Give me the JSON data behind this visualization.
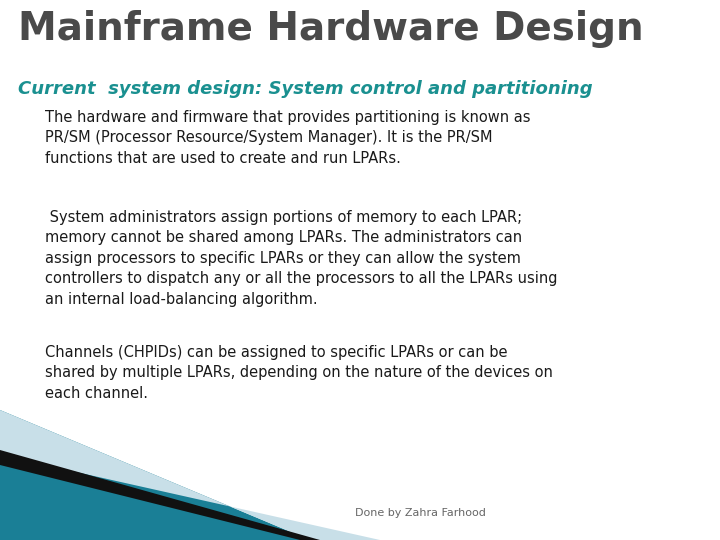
{
  "title": "Mainframe Hardware Design",
  "subtitle": "Current  system design: System control and partitioning",
  "paragraph1": "The hardware and firmware that provides partitioning is known as\nPR/SM (Processor Resource/System Manager). It is the PR/SM\nfunctions that are used to create and run LPARs.",
  "paragraph2": " System administrators assign portions of memory to each LPAR;\nmemory cannot be shared among LPARs. The administrators can\nassign processors to specific LPARs or they can allow the system\ncontrollers to dispatch any or all the processors to all the LPARs using\nan internal load-balancing algorithm.",
  "paragraph3": "Channels (CHPIDs) can be assigned to specific LPARs or can be\nshared by multiple LPARs, depending on the nature of the devices on\neach channel.",
  "footer": "Done by Zahra Farhood",
  "bg_color": "#ffffff",
  "title_color": "#4a4a4a",
  "subtitle_color": "#1a9090",
  "body_color": "#1a1a1a",
  "footer_color": "#666666",
  "teal_color": "#1a7f96",
  "black_color": "#111111",
  "light_blue_color": "#c8dfe8",
  "title_fontsize": 28,
  "subtitle_fontsize": 13,
  "body_fontsize": 10.5,
  "footer_fontsize": 8
}
